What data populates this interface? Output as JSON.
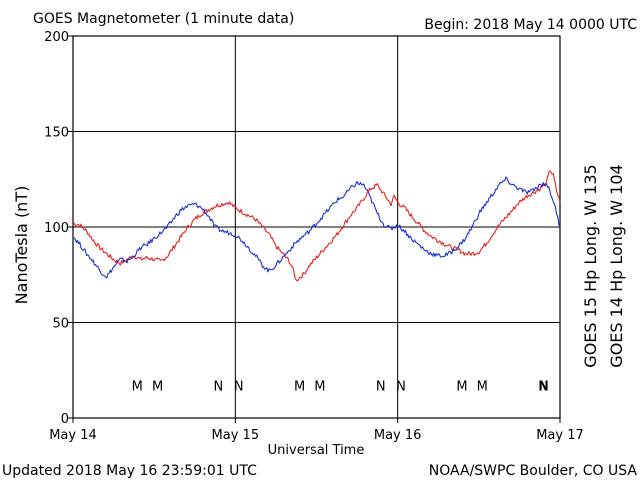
{
  "header": {
    "title": "GOES Magnetometer (1 minute data)",
    "begin": "Begin:  2018 May 14 0000 UTC"
  },
  "footer": {
    "updated": "Updated 2018 May 16 23:59:01 UTC",
    "credit": "NOAA/SWPC Boulder, CO USA"
  },
  "colors": {
    "red": "#e8201a",
    "blue": "#1a2fd0",
    "frame": "#000000"
  },
  "chart_data": {
    "type": "line",
    "title": "GOES Magnetometer (1 minute data)",
    "xlabel": "Universal Time",
    "ylabel": "NanoTesla (nT)",
    "xlim": [
      0,
      72
    ],
    "ylim": [
      0,
      200
    ],
    "x_unit": "hours since 2018 May 14 0000 UTC",
    "grid": true,
    "x_ticks": [
      {
        "x": 0,
        "label": "May 14"
      },
      {
        "x": 24,
        "label": "May 15"
      },
      {
        "x": 48,
        "label": "May 16"
      },
      {
        "x": 72,
        "label": "May 17"
      }
    ],
    "y_ticks": [
      0,
      50,
      100,
      150,
      200
    ],
    "series": [
      {
        "name": "GOES 15 Hp  Long. W 135",
        "color": "#e8201a",
        "points": [
          [
            0,
            102
          ],
          [
            1,
            101
          ],
          [
            2,
            98
          ],
          [
            3,
            93
          ],
          [
            4,
            89
          ],
          [
            5,
            86
          ],
          [
            6,
            83
          ],
          [
            7,
            81
          ],
          [
            8,
            83
          ],
          [
            9,
            85
          ],
          [
            10,
            83
          ],
          [
            11,
            84
          ],
          [
            12,
            83
          ],
          [
            13,
            82
          ],
          [
            14,
            85
          ],
          [
            15,
            90
          ],
          [
            16,
            95
          ],
          [
            17,
            100
          ],
          [
            18,
            104
          ],
          [
            19,
            107
          ],
          [
            20,
            109
          ],
          [
            21,
            111
          ],
          [
            22,
            112
          ],
          [
            23,
            113
          ],
          [
            24,
            110
          ],
          [
            25,
            108
          ],
          [
            26,
            106
          ],
          [
            27,
            104
          ],
          [
            28,
            100
          ],
          [
            29,
            96
          ],
          [
            30,
            90
          ],
          [
            31,
            86
          ],
          [
            32,
            82
          ],
          [
            32.5,
            78
          ],
          [
            33,
            72
          ],
          [
            34,
            75
          ],
          [
            35,
            80
          ],
          [
            36,
            84
          ],
          [
            37,
            88
          ],
          [
            38,
            92
          ],
          [
            39,
            96
          ],
          [
            40,
            101
          ],
          [
            41,
            106
          ],
          [
            42,
            110
          ],
          [
            43,
            115
          ],
          [
            44,
            120
          ],
          [
            45,
            122
          ],
          [
            46,
            117
          ],
          [
            47,
            112
          ],
          [
            47.5,
            116
          ],
          [
            48,
            113
          ],
          [
            49,
            110
          ],
          [
            50,
            106
          ],
          [
            51,
            102
          ],
          [
            52,
            98
          ],
          [
            53,
            95
          ],
          [
            54,
            93
          ],
          [
            55,
            91
          ],
          [
            56,
            89
          ],
          [
            57,
            88
          ],
          [
            58,
            86
          ],
          [
            59,
            86
          ],
          [
            60,
            87
          ],
          [
            61,
            91
          ],
          [
            62,
            96
          ],
          [
            63,
            101
          ],
          [
            64,
            105
          ],
          [
            65,
            109
          ],
          [
            66,
            113
          ],
          [
            67,
            116
          ],
          [
            68,
            118
          ],
          [
            69,
            120
          ],
          [
            70,
            123
          ],
          [
            70.5,
            130
          ],
          [
            71,
            127
          ],
          [
            71.5,
            119
          ],
          [
            72,
            113
          ]
        ]
      },
      {
        "name": "GOES 14 Hp  Long. W 104",
        "color": "#1a2fd0",
        "points": [
          [
            0,
            95
          ],
          [
            1,
            91
          ],
          [
            2,
            86
          ],
          [
            3,
            82
          ],
          [
            4,
            77
          ],
          [
            5,
            74
          ],
          [
            6,
            79
          ],
          [
            7,
            83
          ],
          [
            8,
            82
          ],
          [
            9,
            85
          ],
          [
            10,
            89
          ],
          [
            11,
            91
          ],
          [
            12,
            94
          ],
          [
            13,
            97
          ],
          [
            14,
            100
          ],
          [
            15,
            105
          ],
          [
            16,
            109
          ],
          [
            17,
            111
          ],
          [
            18,
            112
          ],
          [
            19,
            110
          ],
          [
            20,
            106
          ],
          [
            21,
            100
          ],
          [
            22,
            98
          ],
          [
            23,
            97
          ],
          [
            24,
            96
          ],
          [
            25,
            93
          ],
          [
            26,
            89
          ],
          [
            27,
            85
          ],
          [
            28,
            80
          ],
          [
            29,
            77
          ],
          [
            30,
            80
          ],
          [
            31,
            84
          ],
          [
            32,
            88
          ],
          [
            33,
            92
          ],
          [
            34,
            95
          ],
          [
            35,
            98
          ],
          [
            36,
            102
          ],
          [
            37,
            106
          ],
          [
            38,
            110
          ],
          [
            39,
            114
          ],
          [
            40,
            116
          ],
          [
            41,
            120
          ],
          [
            42,
            123
          ],
          [
            43,
            122
          ],
          [
            44,
            115
          ],
          [
            45,
            107
          ],
          [
            46,
            101
          ],
          [
            47,
            99
          ],
          [
            48,
            101
          ],
          [
            49,
            98
          ],
          [
            50,
            94
          ],
          [
            51,
            91
          ],
          [
            52,
            88
          ],
          [
            53,
            86
          ],
          [
            54,
            85
          ],
          [
            55,
            85
          ],
          [
            56,
            87
          ],
          [
            57,
            90
          ],
          [
            58,
            94
          ],
          [
            59,
            100
          ],
          [
            60,
            107
          ],
          [
            61,
            112
          ],
          [
            62,
            117
          ],
          [
            63,
            122
          ],
          [
            64,
            125
          ],
          [
            65,
            122
          ],
          [
            66,
            120
          ],
          [
            67,
            118
          ],
          [
            68,
            119
          ],
          [
            69,
            122
          ],
          [
            70,
            123
          ],
          [
            71,
            114
          ],
          [
            71.5,
            107
          ],
          [
            72,
            100
          ]
        ]
      }
    ],
    "markers": [
      {
        "label": "M",
        "x": 9.5,
        "color": "#1a2fd0"
      },
      {
        "label": "M",
        "x": 12.5,
        "color": "#e8201a"
      },
      {
        "label": "N",
        "x": 21.5,
        "color": "#1a2fd0"
      },
      {
        "label": "N",
        "x": 24.5,
        "color": "#e8201a"
      },
      {
        "label": "M",
        "x": 33.5,
        "color": "#1a2fd0"
      },
      {
        "label": "M",
        "x": 36.5,
        "color": "#e8201a"
      },
      {
        "label": "N",
        "x": 45.5,
        "color": "#1a2fd0"
      },
      {
        "label": "N",
        "x": 48.5,
        "color": "#e8201a"
      },
      {
        "label": "M",
        "x": 57.5,
        "color": "#1a2fd0"
      },
      {
        "label": "M",
        "x": 60.5,
        "color": "#e8201a"
      },
      {
        "label": "N",
        "x": 69.5,
        "color": "#1a2fd0"
      },
      {
        "label": "N",
        "x": 72.5,
        "color": "#e8201a"
      }
    ],
    "marker_y": 17
  }
}
